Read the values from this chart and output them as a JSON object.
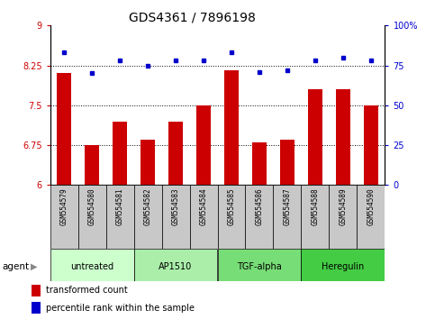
{
  "title": "GDS4361 / 7896198",
  "categories": [
    "GSM554579",
    "GSM554580",
    "GSM554581",
    "GSM554582",
    "GSM554583",
    "GSM554584",
    "GSM554585",
    "GSM554586",
    "GSM554587",
    "GSM554588",
    "GSM554589",
    "GSM554590"
  ],
  "bar_values": [
    8.1,
    6.75,
    7.2,
    6.85,
    7.2,
    7.5,
    8.15,
    6.8,
    6.85,
    7.8,
    7.8,
    7.5
  ],
  "dot_values": [
    83,
    70,
    78,
    75,
    78,
    78,
    83,
    71,
    72,
    78,
    80,
    78
  ],
  "bar_color": "#cc0000",
  "dot_color": "#0000cc",
  "left_ylim": [
    6,
    9
  ],
  "right_ylim": [
    0,
    100
  ],
  "left_yticks": [
    6,
    6.75,
    7.5,
    8.25,
    9
  ],
  "right_yticks": [
    0,
    25,
    50,
    75,
    100
  ],
  "right_yticklabels": [
    "0",
    "25",
    "50",
    "75",
    "100%"
  ],
  "hlines": [
    6.75,
    7.5,
    8.25
  ],
  "agents": [
    {
      "label": "untreated",
      "start": 0,
      "end": 3
    },
    {
      "label": "AP1510",
      "start": 3,
      "end": 6
    },
    {
      "label": "TGF-alpha",
      "start": 6,
      "end": 9
    },
    {
      "label": "Heregulin",
      "start": 9,
      "end": 12
    }
  ],
  "agent_colors": [
    "#ccffcc",
    "#aaeeaa",
    "#77dd77",
    "#44cc44"
  ],
  "legend_bar_label": "transformed count",
  "legend_dot_label": "percentile rank within the sample",
  "agent_label": "agent",
  "bg_color": "#ffffff",
  "xtick_bg": "#c8c8c8",
  "bar_width": 0.5,
  "title_fontsize": 10,
  "tick_fontsize": 7,
  "label_fontsize": 7
}
